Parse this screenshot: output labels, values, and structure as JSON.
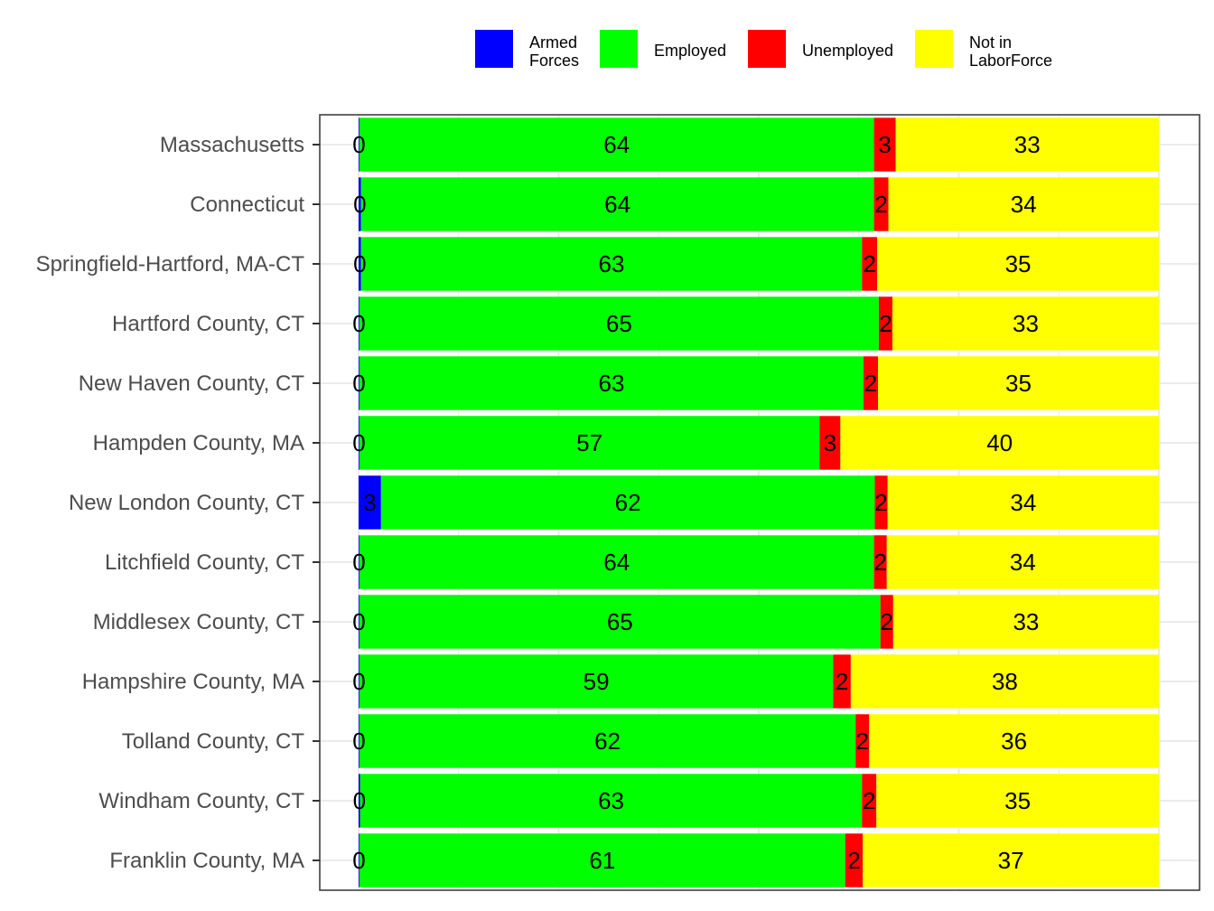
{
  "chart_data": {
    "type": "bar",
    "orientation": "horizontal",
    "stacked": true,
    "normalized": true,
    "xlim": [
      0,
      1
    ],
    "grid": true,
    "legend_position": "top",
    "categories": [
      "Massachusetts",
      "Connecticut",
      "Springfield-Hartford, MA-CT",
      "Hartford County, CT",
      "New Haven County, CT",
      "Hampden County, MA",
      "New London County, CT",
      "Litchfield County, CT",
      "Middlesex County, CT",
      "Hampshire County, MA",
      "Tolland County, CT",
      "Windham County, CT",
      "Franklin County, MA"
    ],
    "series": [
      {
        "key": "armed",
        "name": "Armed Forces",
        "legend_lines": [
          "Armed",
          "Forces"
        ],
        "color": "#0000ff",
        "values": [
          0.1,
          0.3,
          0.3,
          0.1,
          0.1,
          0.1,
          2.8,
          0.1,
          0.1,
          0.1,
          0.1,
          0.2,
          0.1
        ],
        "labels": [
          "0",
          "0",
          "0",
          "0",
          "0",
          "0",
          "3",
          "0",
          "0",
          "0",
          "0",
          "0",
          "0"
        ]
      },
      {
        "key": "employed",
        "name": "Employed",
        "legend_lines": [
          "Employed"
        ],
        "color": "#00ff00",
        "values": [
          64.3,
          64.1,
          62.6,
          64.9,
          63.0,
          57.5,
          61.7,
          64.3,
          65.1,
          59.2,
          62.0,
          62.7,
          60.7
        ],
        "labels": [
          "64",
          "64",
          "63",
          "65",
          "63",
          "57",
          "62",
          "64",
          "65",
          "59",
          "62",
          "63",
          "61"
        ]
      },
      {
        "key": "unemployed",
        "name": "Unemployed",
        "legend_lines": [
          "Unemployed"
        ],
        "color": "#ff0000",
        "values": [
          2.7,
          1.8,
          1.9,
          1.7,
          1.8,
          2.6,
          1.6,
          1.6,
          1.6,
          2.2,
          1.7,
          1.8,
          2.2
        ],
        "labels": [
          "3",
          "2",
          "2",
          "2",
          "2",
          "3",
          "2",
          "2",
          "2",
          "2",
          "2",
          "2",
          "2"
        ]
      },
      {
        "key": "nilf",
        "name": "Not in LaborForce",
        "legend_lines": [
          "Not in",
          "LaborForce"
        ],
        "color": "#ffff00",
        "values": [
          32.9,
          33.8,
          35.2,
          33.3,
          35.1,
          39.8,
          33.9,
          34.0,
          33.2,
          38.5,
          36.2,
          35.3,
          37.0
        ],
        "labels": [
          "33",
          "34",
          "35",
          "33",
          "35",
          "40",
          "34",
          "34",
          "33",
          "38",
          "36",
          "35",
          "37"
        ]
      }
    ]
  }
}
